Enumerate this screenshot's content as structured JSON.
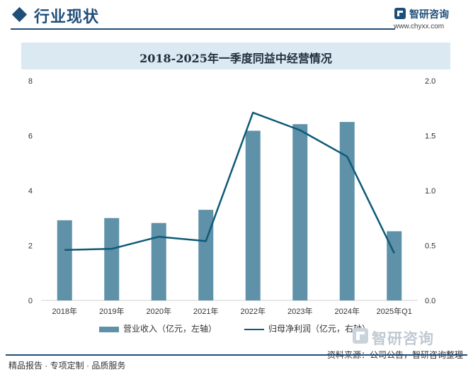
{
  "header": {
    "section_title": "行业现状",
    "logo_name": "智研咨询",
    "logo_url": "www.chyxx.com"
  },
  "chart_data": {
    "type": "bar",
    "title": "2018-2025年一季度同益中经营情况",
    "categories": [
      "2018年",
      "2019年",
      "2020年",
      "2021年",
      "2022年",
      "2023年",
      "2024年",
      "2025年Q1"
    ],
    "series": [
      {
        "name": "营业收入（亿元，左轴）",
        "type": "bar",
        "axis": "left",
        "values": [
          2.92,
          3.0,
          2.82,
          3.3,
          6.18,
          6.42,
          6.5,
          2.52
        ]
      },
      {
        "name": "归母净利润（亿元，右轴）",
        "type": "line",
        "axis": "right",
        "values": [
          0.46,
          0.47,
          0.58,
          0.54,
          1.71,
          1.55,
          1.31,
          0.43
        ]
      }
    ],
    "y_left": {
      "min": 0,
      "max": 8,
      "ticks": [
        "0",
        "2",
        "4",
        "6",
        "8"
      ]
    },
    "y_right": {
      "min": 0,
      "max": 2,
      "ticks": [
        "0.0",
        "0.5",
        "1.0",
        "1.5",
        "2.0"
      ]
    },
    "grid": false,
    "legend_position": "bottom",
    "colors": {
      "bar": "#5f91a8",
      "line": "#0e5a78"
    }
  },
  "watermark": {
    "text": "智研咨询"
  },
  "source": "资料来源：公司公告，智研咨询整理",
  "footer": {
    "text": "精品报告 · 专项定制 · 品质服务"
  }
}
